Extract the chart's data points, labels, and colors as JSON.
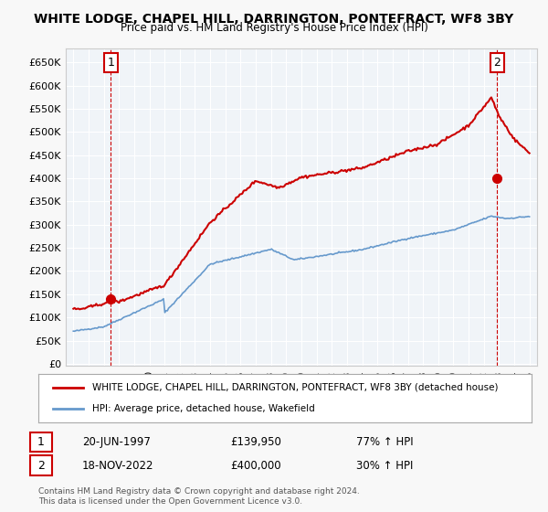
{
  "title": "WHITE LODGE, CHAPEL HILL, DARRINGTON, PONTEFRACT, WF8 3BY",
  "subtitle": "Price paid vs. HM Land Registry's House Price Index (HPI)",
  "ylabel_ticks": [
    "£0",
    "£50K",
    "£100K",
    "£150K",
    "£200K",
    "£250K",
    "£300K",
    "£350K",
    "£400K",
    "£450K",
    "£500K",
    "£550K",
    "£600K",
    "£650K"
  ],
  "ytick_values": [
    0,
    50000,
    100000,
    150000,
    200000,
    250000,
    300000,
    350000,
    400000,
    450000,
    500000,
    550000,
    600000,
    650000
  ],
  "legend_line1": "WHITE LODGE, CHAPEL HILL, DARRINGTON, PONTEFRACT, WF8 3BY (detached house)",
  "legend_line2": "HPI: Average price, detached house, Wakefield",
  "annotation1_label": "1",
  "annotation1_date": "20-JUN-1997",
  "annotation1_price": "£139,950",
  "annotation1_hpi": "77% ↑ HPI",
  "annotation2_label": "2",
  "annotation2_date": "18-NOV-2022",
  "annotation2_price": "£400,000",
  "annotation2_hpi": "30% ↑ HPI",
  "copyright": "Contains HM Land Registry data © Crown copyright and database right 2024.\nThis data is licensed under the Open Government Licence v3.0.",
  "red_color": "#cc0000",
  "blue_color": "#6699cc",
  "bg_color": "#e8eef4",
  "plot_bg": "#f0f4f8",
  "grid_color": "#ffffff",
  "annotation_vline_color": "#cc0000",
  "point1_year": 1997.47,
  "point1_value": 139950,
  "point2_year": 2022.88,
  "point2_value": 400000
}
